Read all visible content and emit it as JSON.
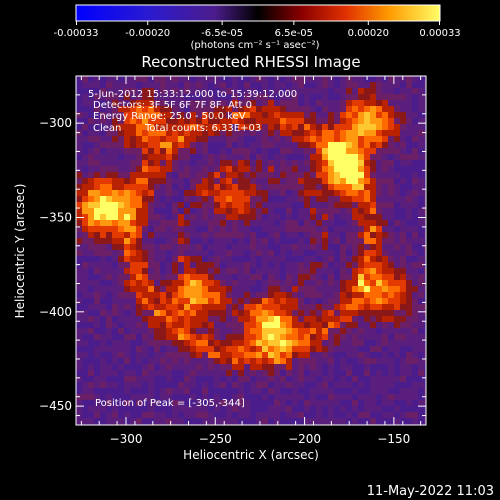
{
  "colorbar": {
    "tick_labels": [
      "-0.00033",
      "-0.00020",
      "-6.5e-05",
      "6.5e-05",
      "0.00020",
      "0.00033"
    ],
    "tick_values": [
      -0.00033,
      -0.0002,
      -6.5e-05,
      6.5e-05,
      0.0002,
      0.00033
    ],
    "range": [
      -0.00033,
      0.00033
    ],
    "unit_label": "(photons cm⁻² s⁻¹ asec⁻²)"
  },
  "info": {
    "time_range": "5-Jun-2012 15:33:12.000 to 15:39:12.000",
    "detectors": "Detectors: 3F 5F 6F 7F 8F, Att 0",
    "energy": "Energy Range: 25.0 - 50.0 keV",
    "clean_label": "Clean",
    "total_counts": "Total counts: 6.33E+03",
    "peak": "Position of Peak = [-305,-344]"
  },
  "footer_date": "11-May-2022 11:03",
  "colors": {
    "background": "#000000",
    "text": "#ffffff",
    "peak_marker": "#ffffff"
  },
  "chart_data": {
    "type": "heatmap",
    "title": "Reconstructed RHESSI Image",
    "xlabel": "Heliocentric X (arcsec)",
    "ylabel": "Heliocentric Y (arcsec)",
    "xlim": [
      -328,
      -132
    ],
    "ylim": [
      -460,
      -275
    ],
    "x_ticks": [
      -300,
      -250,
      -200,
      -150
    ],
    "y_ticks": [
      -300,
      -350,
      -400,
      -450
    ],
    "x_tick_labels": [
      "−300",
      "−250",
      "−200",
      "−150"
    ],
    "y_tick_labels": [
      "−300",
      "−350",
      "−400",
      "−450"
    ],
    "colormap": "hot-over-purple-blue",
    "peak_position": [
      -305,
      -344
    ],
    "bright_regions": [
      {
        "x": -312,
        "y": -345,
        "relative_intensity": 1.0
      },
      {
        "x": -218,
        "y": -408,
        "relative_intensity": 0.85
      },
      {
        "x": -165,
        "y": -300,
        "relative_intensity": 0.8
      },
      {
        "x": -180,
        "y": -325,
        "relative_intensity": 0.75
      },
      {
        "x": -290,
        "y": -300,
        "relative_intensity": 0.6
      },
      {
        "x": -262,
        "y": -392,
        "relative_intensity": 0.65
      },
      {
        "x": -155,
        "y": -390,
        "relative_intensity": 0.6
      },
      {
        "x": -240,
        "y": -340,
        "relative_intensity": 0.45
      }
    ]
  }
}
